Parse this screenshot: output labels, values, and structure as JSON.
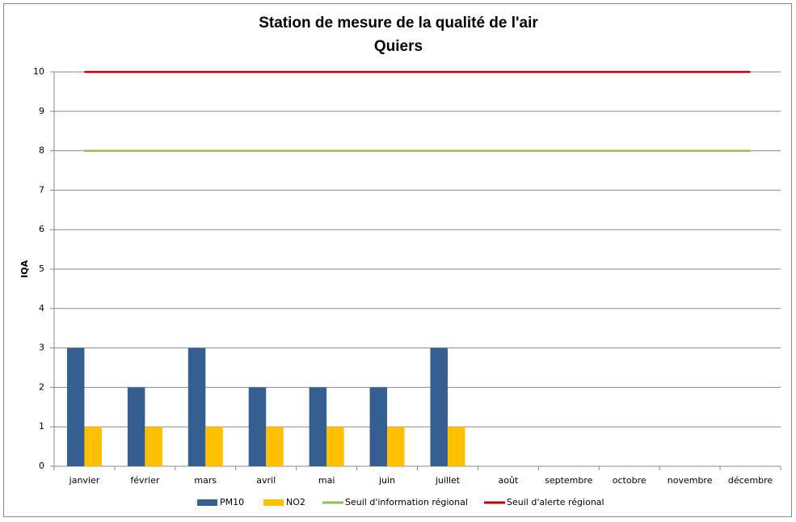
{
  "chart_data": {
    "type": "bar",
    "title": "Station de mesure de la qualité de l'air",
    "subtitle": "Quiers",
    "y_label": "IQA",
    "categories": [
      "janvier",
      "février",
      "mars",
      "avril",
      "mai",
      "juin",
      "juillet",
      "août",
      "septembre",
      "octobre",
      "novembre",
      "décembre"
    ],
    "series": [
      {
        "name": "PM10",
        "type": "bar",
        "color": "#355f91",
        "values": [
          3,
          2,
          3,
          2,
          2,
          2,
          3,
          null,
          null,
          null,
          null,
          null
        ]
      },
      {
        "name": "NO2",
        "type": "bar",
        "color": "#ffc000",
        "values": [
          1,
          1,
          1,
          1,
          1,
          1,
          1,
          null,
          null,
          null,
          null,
          null
        ]
      },
      {
        "name": "Seuil d'information régional",
        "type": "line",
        "color": "#92c050",
        "values": [
          8,
          8,
          8,
          8,
          8,
          8,
          8,
          8,
          8,
          8,
          8,
          8
        ]
      },
      {
        "name": "Seuil d'alerte régional",
        "type": "line",
        "color": "#c00000",
        "values": [
          10,
          10,
          10,
          10,
          10,
          10,
          10,
          10,
          10,
          10,
          10,
          10
        ]
      }
    ],
    "ylim": [
      0,
      10
    ],
    "yticks": [
      0,
      1,
      2,
      3,
      4,
      5,
      6,
      7,
      8,
      9,
      10
    ],
    "grid": true,
    "legend": "bottom"
  }
}
